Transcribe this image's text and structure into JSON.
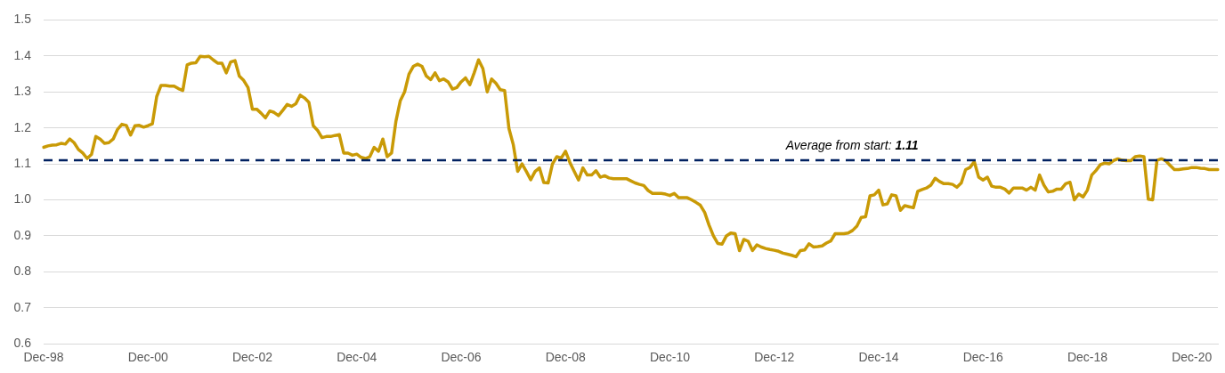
{
  "chart_data": {
    "type": "line",
    "categories": [
      "Dec-98",
      null,
      null,
      null,
      null,
      null,
      null,
      null,
      null,
      null,
      null,
      null,
      null,
      null,
      null,
      null,
      null,
      null,
      null,
      null,
      null,
      null,
      null,
      null,
      "Dec-00",
      null,
      null,
      null,
      null,
      null,
      null,
      null,
      null,
      null,
      null,
      null,
      null,
      null,
      null,
      null,
      null,
      null,
      null,
      null,
      null,
      null,
      null,
      null,
      "Dec-02",
      null,
      null,
      null,
      null,
      null,
      null,
      null,
      null,
      null,
      null,
      null,
      null,
      null,
      null,
      null,
      null,
      null,
      null,
      null,
      null,
      null,
      null,
      null,
      "Dec-04",
      null,
      null,
      null,
      null,
      null,
      null,
      null,
      null,
      null,
      null,
      null,
      null,
      null,
      null,
      null,
      null,
      null,
      null,
      null,
      null,
      null,
      null,
      null,
      "Dec-06",
      null,
      null,
      null,
      null,
      null,
      null,
      null,
      null,
      null,
      null,
      null,
      null,
      null,
      null,
      null,
      null,
      null,
      null,
      null,
      null,
      null,
      null,
      null,
      "Dec-08",
      null,
      null,
      null,
      null,
      null,
      null,
      null,
      null,
      null,
      null,
      null,
      null,
      null,
      null,
      null,
      null,
      null,
      null,
      null,
      null,
      null,
      null,
      null,
      "Dec-10",
      null,
      null,
      null,
      null,
      null,
      null,
      null,
      null,
      null,
      null,
      null,
      null,
      null,
      null,
      null,
      null,
      null,
      null,
      null,
      null,
      null,
      null,
      null,
      "Dec-12",
      null,
      null,
      null,
      null,
      null,
      null,
      null,
      null,
      null,
      null,
      null,
      null,
      null,
      null,
      null,
      null,
      null,
      null,
      null,
      null,
      null,
      null,
      null,
      "Dec-14",
      null,
      null,
      null,
      null,
      null,
      null,
      null,
      null,
      null,
      null,
      null,
      null,
      null,
      null,
      null,
      null,
      null,
      null,
      null,
      null,
      null,
      null,
      null,
      "Dec-16",
      null,
      null,
      null,
      null,
      null,
      null,
      null,
      null,
      null,
      null,
      null,
      null,
      null,
      null,
      null,
      null,
      null,
      null,
      null,
      null,
      null,
      null,
      null,
      "Dec-18",
      null,
      null,
      null,
      null,
      null,
      null,
      null,
      null,
      null,
      null,
      null,
      null,
      null,
      null,
      null,
      null,
      null,
      null,
      null,
      null,
      null,
      null,
      null,
      "Dec-20",
      null,
      null,
      null,
      null,
      null,
      null
    ],
    "series": [
      {
        "color": "#c99a06",
        "values": [
          1.146,
          1.15,
          1.152,
          1.153,
          1.157,
          1.155,
          1.169,
          1.159,
          1.14,
          1.13,
          1.115,
          1.126,
          1.176,
          1.169,
          1.157,
          1.159,
          1.169,
          1.196,
          1.21,
          1.207,
          1.18,
          1.206,
          1.207,
          1.202,
          1.206,
          1.211,
          1.287,
          1.318,
          1.318,
          1.316,
          1.316,
          1.309,
          1.304,
          1.375,
          1.38,
          1.381,
          1.399,
          1.398,
          1.399,
          1.389,
          1.38,
          1.38,
          1.353,
          1.383,
          1.387,
          1.344,
          1.332,
          1.312,
          1.252,
          1.252,
          1.241,
          1.228,
          1.247,
          1.243,
          1.234,
          1.249,
          1.265,
          1.26,
          1.267,
          1.291,
          1.283,
          1.271,
          1.206,
          1.193,
          1.173,
          1.176,
          1.176,
          1.179,
          1.181,
          1.13,
          1.13,
          1.124,
          1.127,
          1.118,
          1.115,
          1.12,
          1.146,
          1.135,
          1.169,
          1.12,
          1.13,
          1.218,
          1.275,
          1.3,
          1.349,
          1.371,
          1.377,
          1.371,
          1.344,
          1.334,
          1.353,
          1.331,
          1.336,
          1.328,
          1.308,
          1.312,
          1.328,
          1.339,
          1.32,
          1.353,
          1.389,
          1.365,
          1.3,
          1.336,
          1.324,
          1.306,
          1.304,
          1.198,
          1.153,
          1.079,
          1.1,
          1.079,
          1.056,
          1.079,
          1.089,
          1.048,
          1.047,
          1.1,
          1.12,
          1.116,
          1.135,
          1.104,
          1.079,
          1.055,
          1.089,
          1.069,
          1.069,
          1.081,
          1.063,
          1.067,
          1.061,
          1.059,
          1.059,
          1.059,
          1.059,
          1.053,
          1.047,
          1.043,
          1.04,
          1.026,
          1.018,
          1.018,
          1.018,
          1.016,
          1.012,
          1.018,
          1.006,
          1.006,
          1.006,
          1.0,
          0.993,
          0.985,
          0.965,
          0.93,
          0.9,
          0.879,
          0.877,
          0.9,
          0.908,
          0.906,
          0.859,
          0.89,
          0.885,
          0.859,
          0.875,
          0.869,
          0.865,
          0.862,
          0.86,
          0.857,
          0.852,
          0.849,
          0.846,
          0.842,
          0.859,
          0.861,
          0.878,
          0.869,
          0.87,
          0.872,
          0.88,
          0.886,
          0.906,
          0.906,
          0.906,
          0.908,
          0.915,
          0.927,
          0.951,
          0.953,
          1.011,
          1.014,
          1.027,
          0.986,
          0.989,
          1.014,
          1.011,
          0.971,
          0.984,
          0.981,
          0.978,
          1.024,
          1.029,
          1.033,
          1.041,
          1.06,
          1.051,
          1.045,
          1.045,
          1.043,
          1.035,
          1.047,
          1.084,
          1.09,
          1.106,
          1.063,
          1.055,
          1.063,
          1.038,
          1.035,
          1.035,
          1.03,
          1.019,
          1.033,
          1.033,
          1.033,
          1.027,
          1.035,
          1.027,
          1.069,
          1.041,
          1.022,
          1.024,
          1.03,
          1.03,
          1.045,
          1.049,
          1.0,
          1.016,
          1.008,
          1.027,
          1.069,
          1.082,
          1.098,
          1.102,
          1.1,
          1.109,
          1.114,
          1.11,
          1.109,
          1.109,
          1.12,
          1.122,
          1.12,
          1.002,
          1.0,
          1.11,
          1.114,
          1.109,
          1.096,
          1.084,
          1.084,
          1.086,
          1.087,
          1.09,
          1.09,
          1.088,
          1.087,
          1.084,
          1.084,
          1.084
        ]
      }
    ],
    "ylim": [
      0.6,
      1.5
    ],
    "yticks": [
      0.6,
      0.7,
      0.8,
      0.9,
      {
        "value": 1,
        "label": "1.0"
      },
      1.1,
      1.2,
      1.3,
      1.4,
      1.5
    ],
    "grid": "y",
    "legend": false,
    "marker": "none",
    "line_style": "solid",
    "ref_lines": [
      {
        "axis": "y",
        "value": 1.11,
        "label": "Average from start: 1.11",
        "color": "#002060",
        "line_style": "dashed"
      }
    ]
  }
}
